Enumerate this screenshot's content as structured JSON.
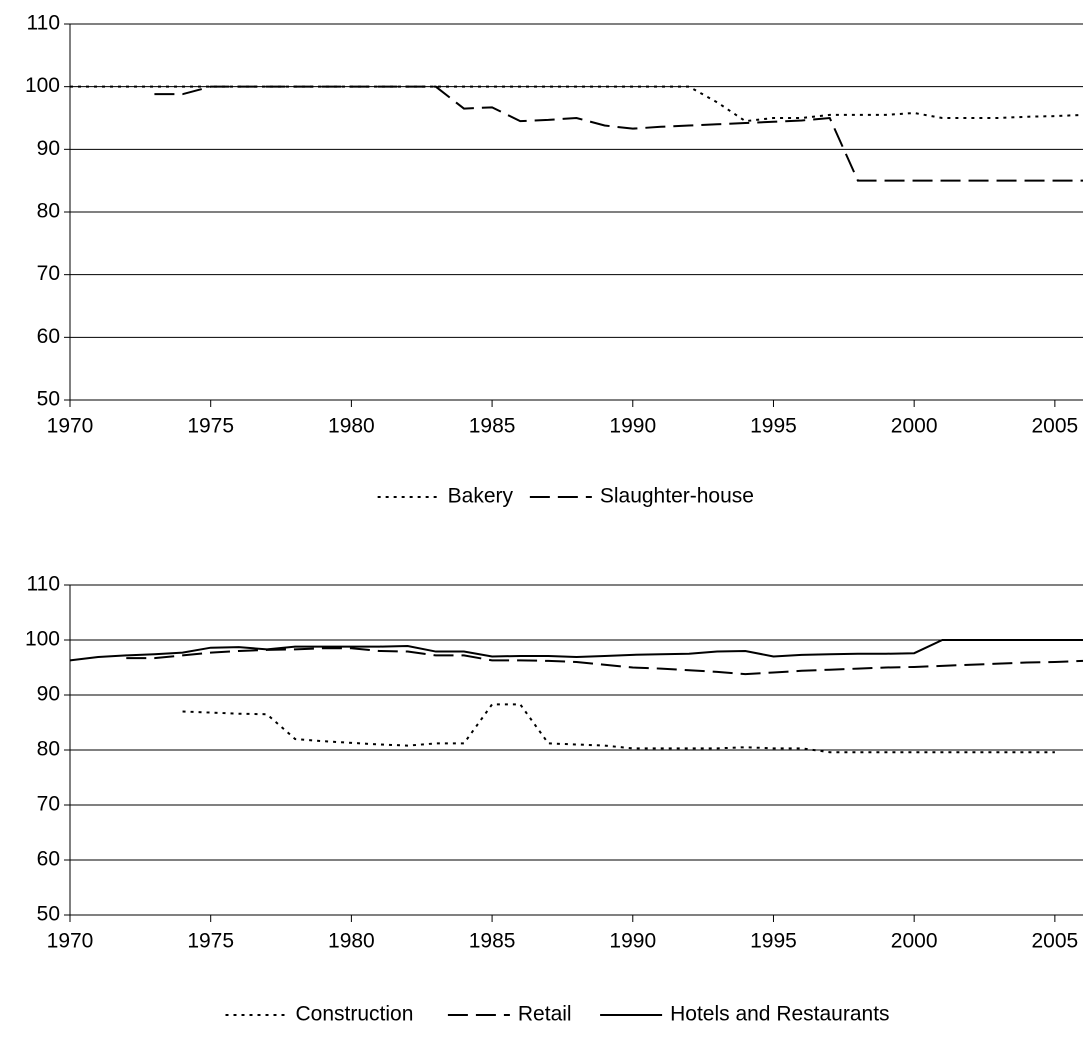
{
  "chart_data": [
    {
      "type": "line",
      "xlim": [
        1970,
        2006
      ],
      "xticks": [
        1970,
        1975,
        1980,
        1985,
        1990,
        1995,
        2000,
        2005
      ],
      "ylim": [
        50,
        110
      ],
      "yticks": [
        50,
        60,
        70,
        80,
        90,
        100,
        110
      ],
      "grid": true,
      "legend": "bottom",
      "x": [
        1970,
        1971,
        1972,
        1973,
        1974,
        1975,
        1976,
        1977,
        1978,
        1979,
        1980,
        1981,
        1982,
        1983,
        1984,
        1985,
        1986,
        1987,
        1988,
        1989,
        1990,
        1991,
        1992,
        1993,
        1994,
        1995,
        1996,
        1997,
        1998,
        1999,
        2000,
        2001,
        2002,
        2003,
        2004,
        2005,
        2006
      ],
      "series": [
        {
          "name": "Bakery",
          "color": "#000000",
          "linestyle": "dotted",
          "values": [
            100,
            100,
            100,
            100,
            100,
            100,
            100,
            100,
            100,
            100,
            100,
            100,
            100,
            100,
            100,
            100,
            100,
            100,
            100,
            100,
            100,
            100,
            100,
            97.5,
            94.5,
            95,
            95,
            95.5,
            95.5,
            95.5,
            95.8,
            95,
            95,
            95,
            95.2,
            95.3,
            95.5
          ]
        },
        {
          "name": "Slaughter-house",
          "color": "#000000",
          "linestyle": "dashed",
          "values": [
            null,
            null,
            null,
            98.8,
            98.8,
            100,
            100,
            100,
            100,
            100,
            100,
            100,
            100,
            100,
            96.5,
            96.7,
            94.5,
            94.7,
            95,
            93.8,
            93.3,
            93.6,
            93.8,
            94,
            94.2,
            94.4,
            94.6,
            95,
            85,
            85,
            85,
            85,
            85,
            85,
            85,
            85,
            85
          ]
        }
      ]
    },
    {
      "type": "line",
      "xlim": [
        1970,
        2006
      ],
      "xticks": [
        1970,
        1975,
        1980,
        1985,
        1990,
        1995,
        2000,
        2005
      ],
      "ylim": [
        50,
        110
      ],
      "yticks": [
        50,
        60,
        70,
        80,
        90,
        100,
        110
      ],
      "grid": true,
      "legend": "bottom",
      "x": [
        1970,
        1971,
        1972,
        1973,
        1974,
        1975,
        1976,
        1977,
        1978,
        1979,
        1980,
        1981,
        1982,
        1983,
        1984,
        1985,
        1986,
        1987,
        1988,
        1989,
        1990,
        1991,
        1992,
        1993,
        1994,
        1995,
        1996,
        1997,
        1998,
        1999,
        2000,
        2001,
        2002,
        2003,
        2004,
        2005,
        2006
      ],
      "series": [
        {
          "name": "Construction",
          "color": "#000000",
          "linestyle": "dotted",
          "values": [
            null,
            null,
            null,
            null,
            87,
            86.8,
            86.6,
            86.5,
            82,
            81.6,
            81.3,
            81,
            80.8,
            81.2,
            81.2,
            88.3,
            88.3,
            81.2,
            81,
            80.8,
            80.3,
            80.3,
            80.3,
            80.3,
            80.5,
            80.3,
            80.3,
            79.6,
            79.6,
            79.6,
            79.6,
            79.6,
            79.6,
            79.6,
            79.6,
            79.6,
            null
          ]
        },
        {
          "name": "Retail",
          "color": "#000000",
          "linestyle": "dashed",
          "values": [
            null,
            null,
            96.7,
            96.7,
            97.2,
            97.7,
            98,
            98.2,
            98.3,
            98.5,
            98.5,
            98,
            97.9,
            97.2,
            97.2,
            96.3,
            96.3,
            96.2,
            96,
            95.5,
            95,
            94.8,
            94.5,
            94.2,
            93.8,
            94.1,
            94.4,
            94.6,
            94.8,
            95,
            95.1,
            95.3,
            95.5,
            95.7,
            95.9,
            96,
            96.2
          ]
        },
        {
          "name": "Hotels and Restaurants",
          "color": "#000000",
          "linestyle": "solid",
          "values": [
            96.3,
            96.9,
            97.2,
            97.4,
            97.7,
            98.6,
            98.7,
            98.3,
            98.8,
            98.8,
            98.8,
            98.8,
            98.9,
            97.9,
            97.9,
            97,
            97.1,
            97.1,
            96.9,
            97.1,
            97.3,
            97.4,
            97.5,
            97.9,
            98,
            97,
            97.3,
            97.4,
            97.5,
            97.5,
            97.6,
            100,
            100,
            100,
            100,
            100,
            100
          ]
        }
      ]
    }
  ]
}
